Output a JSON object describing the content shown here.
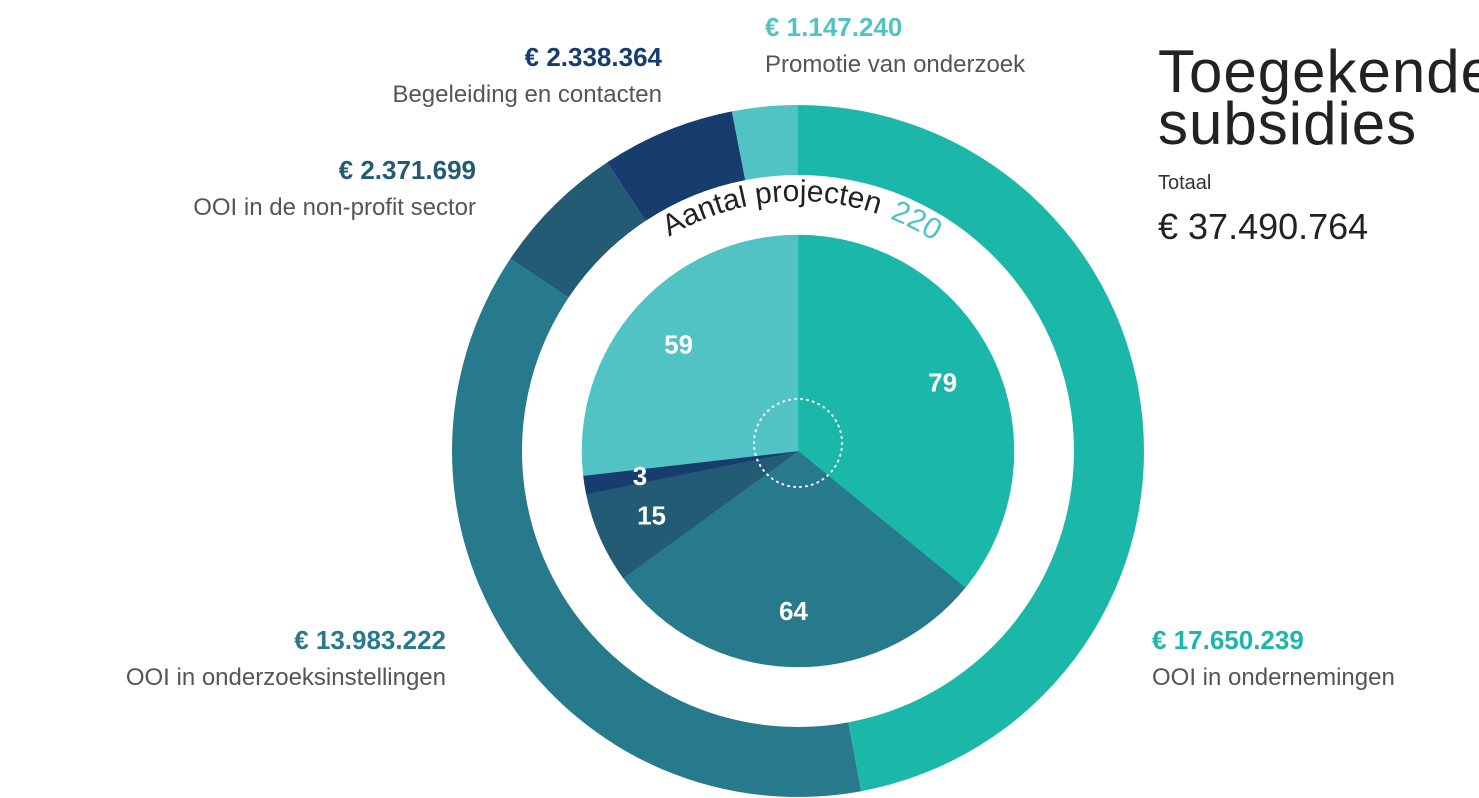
{
  "chart_data": [
    {
      "type": "donut",
      "title": "Toegekende subsidies",
      "total_caption": "Totaal",
      "total": "€ 37.490.764",
      "categories": [
        "OOI in ondernemingen",
        "OOI in onderzoeksinstellingen",
        "OOI in de non-profit sector",
        "Begeleiding en contacten",
        "Promotie van onderzoek"
      ],
      "values": [
        17650239,
        13983222,
        2371699,
        2338364,
        1147240
      ],
      "value_labels": [
        "€ 17.650.239",
        "€ 13.983.222",
        "€ 2.371.699",
        "€ 2.338.364",
        "€ 1.147.240"
      ],
      "colors": [
        "#1bb8a9",
        "#277a8c",
        "#235b75",
        "#173d6e",
        "#52c3c4"
      ]
    },
    {
      "type": "pie",
      "title": "Aantal projecten",
      "total": 220,
      "values": [
        79,
        64,
        15,
        3,
        59
      ],
      "colors": [
        "#1bb8a9",
        "#277a8c",
        "#235b75",
        "#173d6e",
        "#52c3c4"
      ]
    }
  ]
}
